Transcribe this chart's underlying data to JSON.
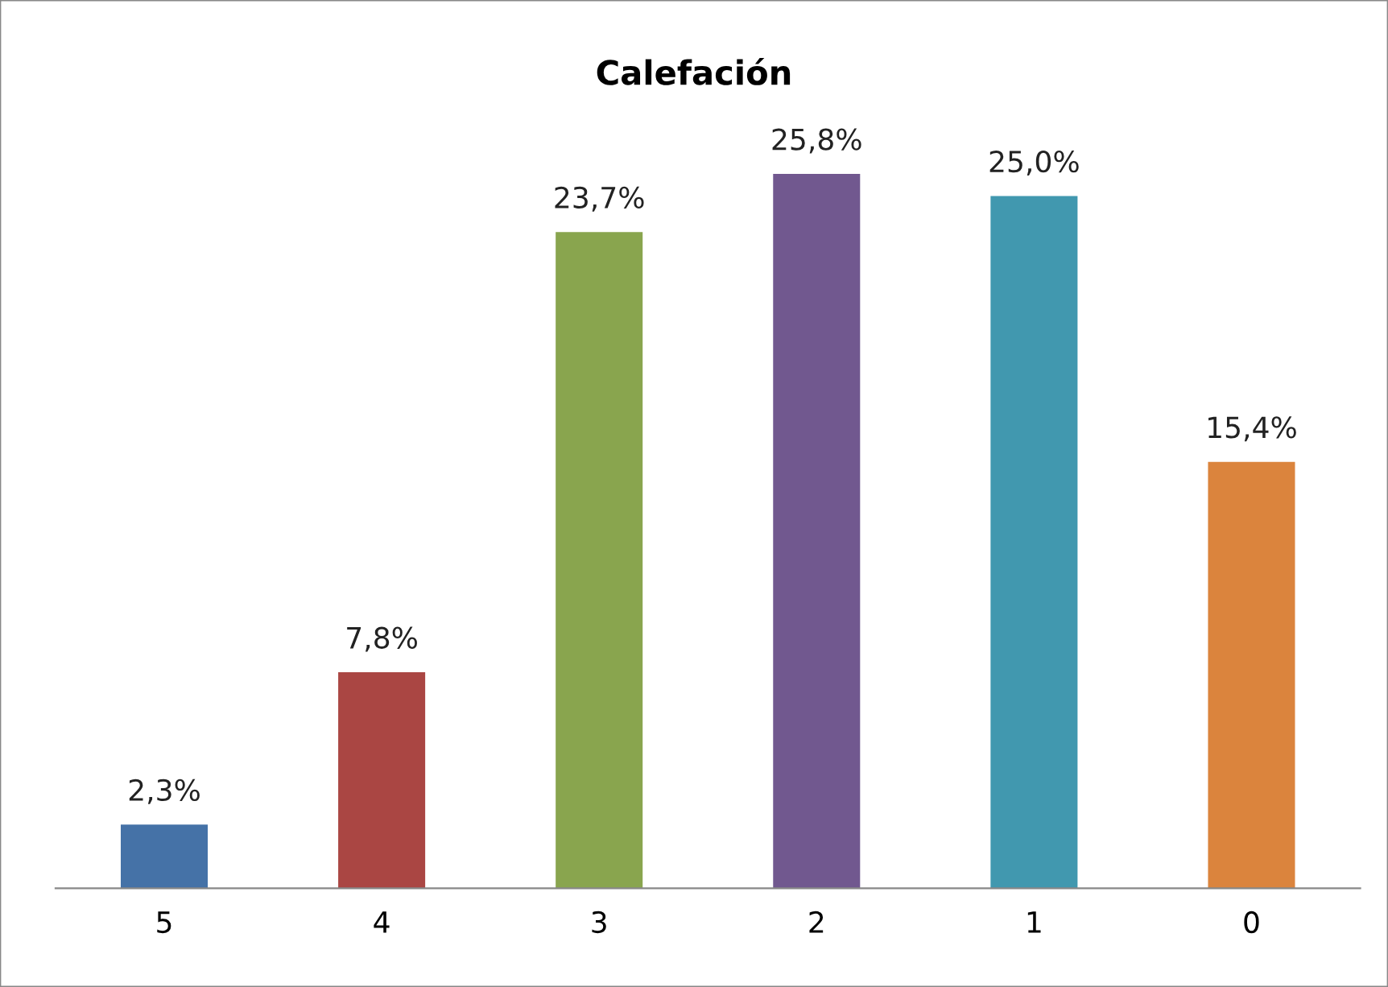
{
  "chart_data": {
    "type": "bar",
    "title": "Calefación",
    "categories": [
      "5",
      "4",
      "3",
      "2",
      "1",
      "0"
    ],
    "values": [
      2.3,
      7.8,
      23.7,
      25.8,
      25.0,
      15.4
    ],
    "value_labels": [
      "2,3%",
      "7,8%",
      "23,7%",
      "25,8%",
      "25,0%",
      "15,4%"
    ],
    "colors": [
      "#4572a7",
      "#aa4643",
      "#89a54e",
      "#71588f",
      "#4198af",
      "#db843d"
    ],
    "grid": false
  }
}
